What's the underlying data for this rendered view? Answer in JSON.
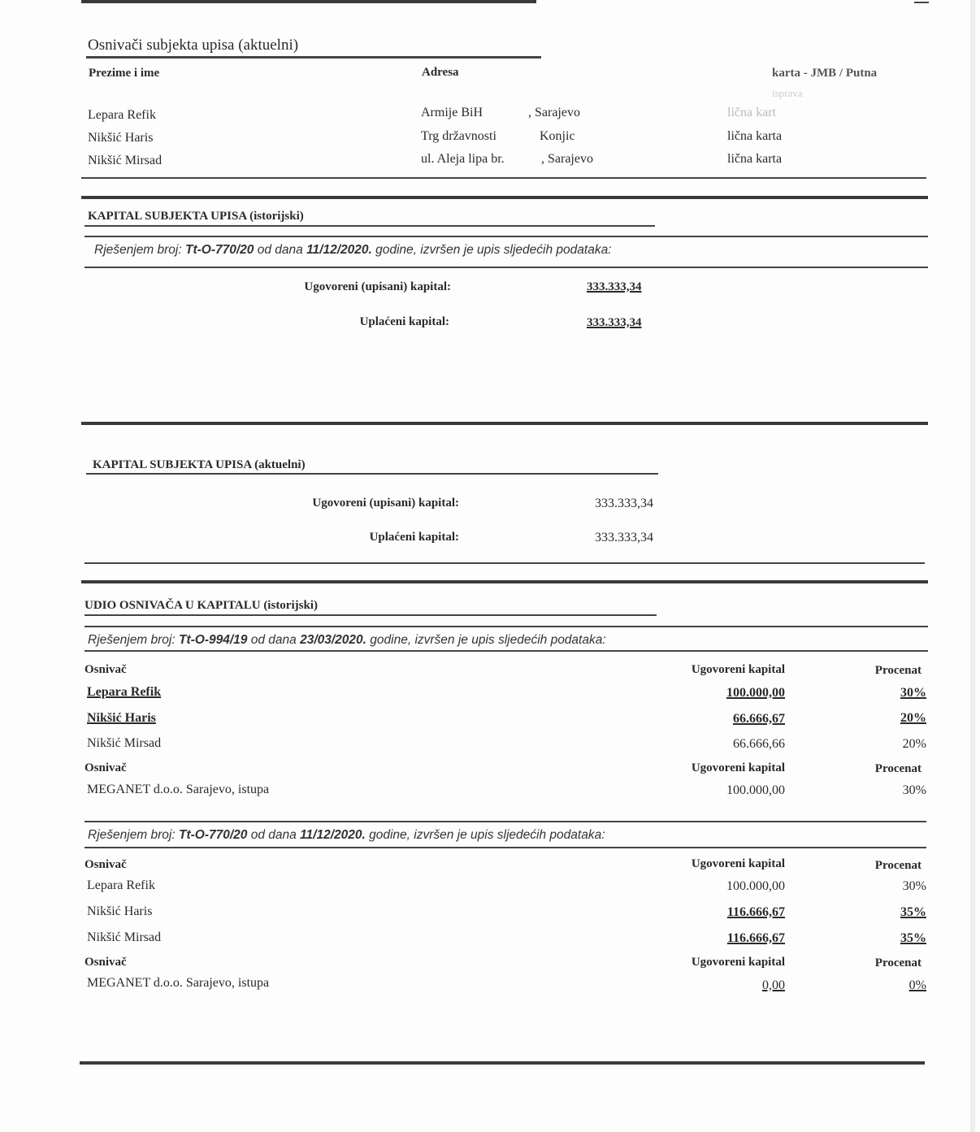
{
  "founders_current": {
    "title": "Osnivači subjekta upisa (aktuelni)",
    "headers": {
      "name": "Prezime i ime",
      "address": "Adresa",
      "id": "karta - JMB / Putna",
      "id_line2": "isprava"
    },
    "rows": [
      {
        "name": "Lepara Refik",
        "street": "Armije BiH",
        "city": ", Sarajevo",
        "id": "lična kart"
      },
      {
        "name": "Nikšić Haris",
        "street": "Trg državnosti",
        "city": "Konjic",
        "id": "lična karta"
      },
      {
        "name": "Nikšić Mirsad",
        "street": "ul. Aleja lipa br.",
        "city": ", Sarajevo",
        "id": "lična karta"
      }
    ]
  },
  "capital_historic": {
    "title": "KAPITAL SUBJEKTA UPISA (istorijski)",
    "decision": {
      "prefix": "Rješenjem broj:",
      "number": "Tt-O-770/20",
      "mid": "od dana",
      "date": "11/12/2020.",
      "suffix": "godine, izvršen je upis sljedećih podataka:"
    },
    "subscribed_label": "Ugovoreni (upisani) kapital:",
    "subscribed_value": "333.333,34",
    "paid_label": "Uplaćeni kapital:",
    "paid_value": "333.333,34"
  },
  "capital_current": {
    "title": "KAPITAL SUBJEKTA UPISA (aktuelni)",
    "subscribed_label": "Ugovoreni (upisani) kapital:",
    "subscribed_value": "333.333,34",
    "paid_label": "Uplaćeni kapital:",
    "paid_value": "333.333,34"
  },
  "shares_historic": {
    "title": "UDIO OSNIVAČA U KAPITALU (istorijski)",
    "headers": {
      "founder": "Osnivač",
      "capital": "Ugovoreni kapital",
      "percent": "Procenat"
    },
    "decisions": [
      {
        "prefix": "Rješenjem broj:",
        "number": "Tt-O-994/19",
        "mid": "od dana",
        "date": "23/03/2020.",
        "suffix": "godine, izvršen je upis sljedećih podataka:",
        "rows": [
          {
            "name": "Lepara Refik",
            "capital": "100.000,00",
            "percent": "30%",
            "changed": true
          },
          {
            "name": "Nikšić Haris",
            "capital": "66.666,67",
            "percent": "20%",
            "changed": true
          },
          {
            "name": "Nikšić Mirsad",
            "capital": "66.666,66",
            "percent": "20%",
            "changed": false
          }
        ],
        "leaving": {
          "name": "MEGANET d.o.o. Sarajevo, istupa",
          "capital": "100.000,00",
          "percent": "30%"
        }
      },
      {
        "prefix": "Rješenjem broj:",
        "number": "Tt-O-770/20",
        "mid": "od dana",
        "date": "11/12/2020.",
        "suffix": "godine, izvršen je upis sljedećih podataka:",
        "rows": [
          {
            "name": "Lepara Refik",
            "capital": "100.000,00",
            "percent": "30%",
            "changed": false
          },
          {
            "name": "Nikšić Haris",
            "capital": "116.666,67",
            "percent": "35%",
            "changed": true
          },
          {
            "name": "Nikšić Mirsad",
            "capital": "116.666,67",
            "percent": "35%",
            "changed": true
          }
        ],
        "leaving": {
          "name": "MEGANET d.o.o. Sarajevo, istupa",
          "capital": "0,00",
          "percent": "0%"
        }
      }
    ]
  }
}
